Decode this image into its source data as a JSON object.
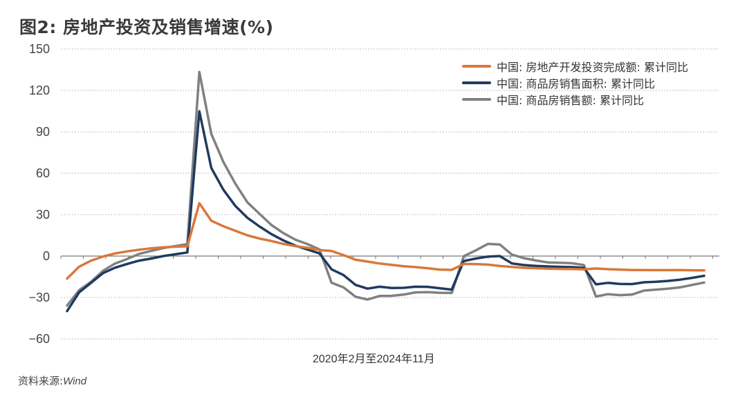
{
  "title": "图2: 房地产投资及销售增速(%)",
  "source_label": "资料来源:",
  "source_value": "Wind",
  "xlabel": "2020年2月至2024年11月",
  "legend": [
    {
      "label": "中国: 房地产开发投资完成额: 累计同比",
      "color": "#d9773a"
    },
    {
      "label": "中国: 商品房销售面积: 累计同比",
      "color": "#1f3a5f"
    },
    {
      "label": "中国: 商品房销售额: 累计同比",
      "color": "#808080"
    }
  ],
  "chart_data": {
    "type": "line",
    "title": "图2: 房地产投资及销售增速(%)",
    "xlabel": "2020年2月至2024年11月",
    "ylabel": "%",
    "ylim": [
      -60,
      150
    ],
    "yticks": [
      150,
      120,
      90,
      60,
      30,
      0,
      -30,
      -60
    ],
    "grid": true,
    "legend_position": "upper right",
    "x": [
      "2020-02",
      "2020-03",
      "2020-04",
      "2020-05",
      "2020-06",
      "2020-07",
      "2020-08",
      "2020-09",
      "2020-10",
      "2020-11",
      "2020-12",
      "2021-02",
      "2021-03",
      "2021-04",
      "2021-05",
      "2021-06",
      "2021-07",
      "2021-08",
      "2021-09",
      "2021-10",
      "2021-11",
      "2021-12",
      "2022-02",
      "2022-03",
      "2022-04",
      "2022-05",
      "2022-06",
      "2022-07",
      "2022-08",
      "2022-09",
      "2022-10",
      "2022-11",
      "2022-12",
      "2023-02",
      "2023-03",
      "2023-04",
      "2023-05",
      "2023-06",
      "2023-07",
      "2023-08",
      "2023-09",
      "2023-10",
      "2023-11",
      "2023-12",
      "2024-02",
      "2024-03",
      "2024-04",
      "2024-05",
      "2024-06",
      "2024-07",
      "2024-08",
      "2024-09",
      "2024-10",
      "2024-11"
    ],
    "series": [
      {
        "name": "中国: 房地产开发投资完成额: 累计同比",
        "color": "#d9773a",
        "values": [
          -16.3,
          -7.7,
          -3.3,
          -0.3,
          1.9,
          3.4,
          4.6,
          5.6,
          6.3,
          6.8,
          7.0,
          38.3,
          25.6,
          21.6,
          18.3,
          15.0,
          12.7,
          10.9,
          8.8,
          7.2,
          6.0,
          4.4,
          3.7,
          0.7,
          -2.7,
          -4.0,
          -5.4,
          -6.4,
          -7.4,
          -8.0,
          -8.8,
          -9.8,
          -10.0,
          -5.7,
          -5.8,
          -6.2,
          -7.2,
          -7.9,
          -8.5,
          -8.8,
          -9.1,
          -9.3,
          -9.4,
          -9.6,
          -9.0,
          -9.5,
          -9.8,
          -10.1,
          -10.1,
          -10.2,
          -10.2,
          -10.1,
          -10.3,
          -10.4
        ]
      },
      {
        "name": "中国: 商品房销售面积: 累计同比",
        "color": "#1f3a5f",
        "values": [
          -39.9,
          -26.3,
          -19.3,
          -12.3,
          -8.4,
          -5.7,
          -3.3,
          -1.8,
          0,
          1.3,
          2.6,
          104.9,
          63.8,
          48.1,
          36.3,
          27.7,
          21.5,
          15.9,
          11.3,
          7.5,
          4.8,
          1.9,
          -9.6,
          -13.8,
          -20.9,
          -23.6,
          -22.2,
          -23.1,
          -23.0,
          -22.2,
          -22.3,
          -23.3,
          -24.3,
          -3.6,
          -1.8,
          -0.4,
          0,
          -5.3,
          -6.5,
          -7.1,
          -7.5,
          -7.8,
          -8.0,
          -8.5,
          -20.5,
          -19.4,
          -20.2,
          -20.3,
          -19.0,
          -18.6,
          -18.0,
          -17.1,
          -15.8,
          -14.3
        ]
      },
      {
        "name": "中国: 商品房销售额: 累计同比",
        "color": "#808080",
        "values": [
          -35.9,
          -24.7,
          -18.6,
          -10.6,
          -5.4,
          -2.1,
          1.6,
          3.7,
          5.8,
          7.2,
          8.7,
          133.4,
          88.5,
          68.2,
          52.4,
          38.9,
          30.7,
          22.5,
          16.6,
          11.8,
          8.7,
          4.8,
          -19.3,
          -22.7,
          -29.5,
          -31.5,
          -28.9,
          -28.8,
          -27.9,
          -26.3,
          -26.1,
          -26.6,
          -26.7,
          -0.1,
          4.1,
          8.8,
          8.4,
          1.1,
          -1.5,
          -3.2,
          -4.6,
          -4.9,
          -5.2,
          -6.5,
          -29.3,
          -27.6,
          -28.3,
          -27.9,
          -25.0,
          -24.3,
          -23.6,
          -22.7,
          -20.9,
          -19.2
        ]
      }
    ]
  }
}
